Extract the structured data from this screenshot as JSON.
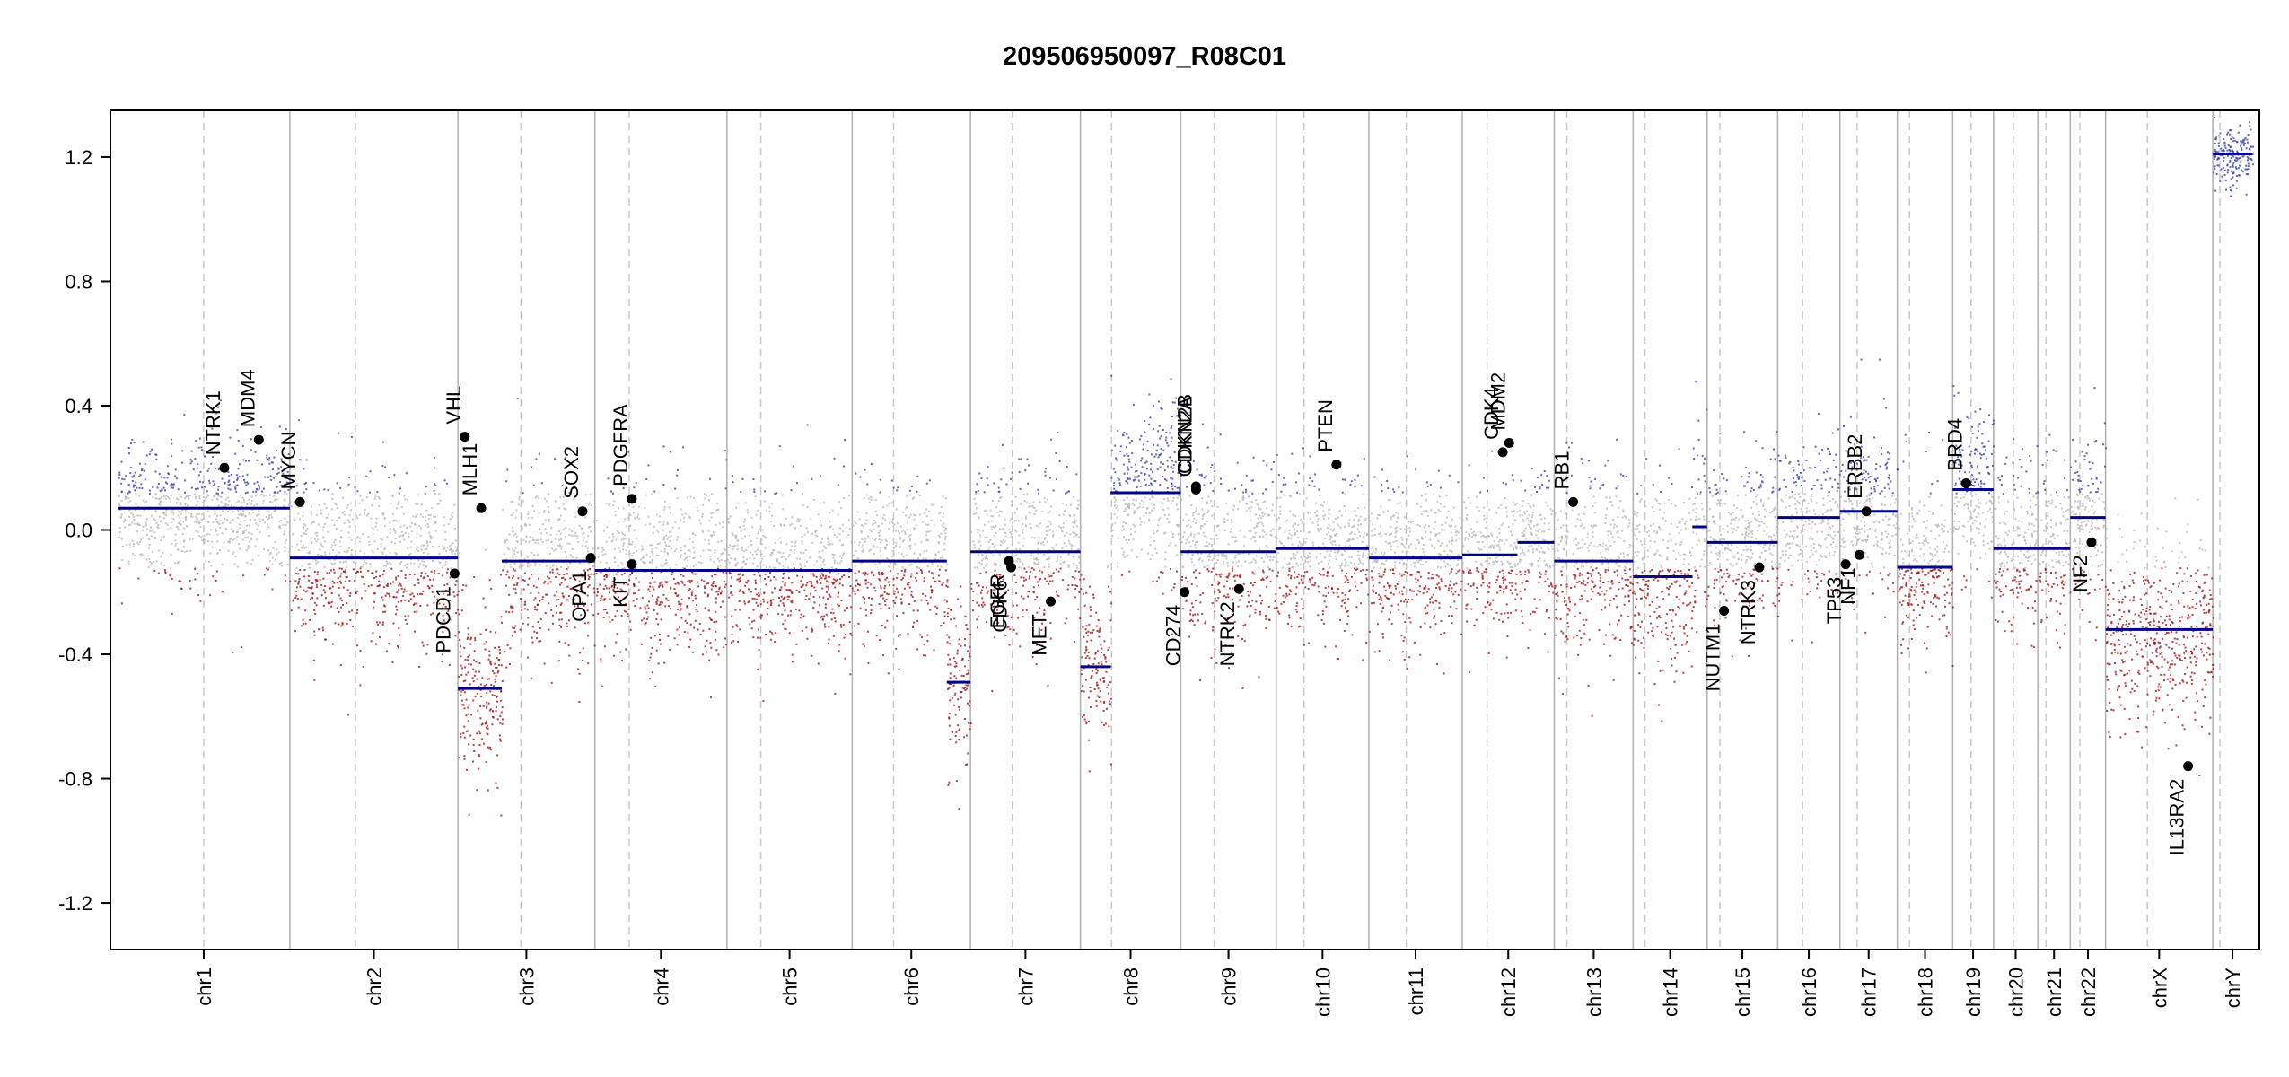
{
  "chart_data": {
    "type": "scatter",
    "title": "209506950097_R08C01",
    "xlabel": "",
    "ylabel": "",
    "ylim": [
      -1.35,
      1.35
    ],
    "y_ticks": [
      "1.2",
      "0.8",
      "0.4",
      "0.0",
      "-0.4",
      "-0.8",
      "-1.2"
    ],
    "y_tick_values": [
      1.2,
      0.8,
      0.4,
      0.0,
      -0.4,
      -0.8,
      -1.2
    ],
    "grid": false,
    "colors": {
      "gain": "#3b44a8",
      "loss": "#a11616",
      "neutral": "#b9b9b9",
      "segment": "#00008b",
      "gene_point": "#000000",
      "chrom_boundary": "#b0b0b0",
      "centromere": "#c8c8c8"
    },
    "chromosomes": [
      {
        "name": "chr1",
        "segments": [
          {
            "from": 0.0,
            "to": 1.0,
            "value": 0.07
          }
        ],
        "noise": 0.11
      },
      {
        "name": "chr2",
        "segments": [
          {
            "from": 0.0,
            "to": 1.0,
            "value": -0.09
          }
        ],
        "noise": 0.13
      },
      {
        "name": "chr3",
        "segments": [
          {
            "from": 0.0,
            "to": 0.32,
            "value": -0.51
          },
          {
            "from": 0.32,
            "to": 1.0,
            "value": -0.1
          }
        ],
        "noise": 0.14
      },
      {
        "name": "chr4",
        "segments": [
          {
            "from": 0.0,
            "to": 1.0,
            "value": -0.13
          }
        ],
        "noise": 0.14
      },
      {
        "name": "chr5",
        "segments": [
          {
            "from": 0.0,
            "to": 1.0,
            "value": -0.13
          }
        ],
        "noise": 0.13
      },
      {
        "name": "chr6",
        "segments": [
          {
            "from": 0.0,
            "to": 0.8,
            "value": -0.1
          },
          {
            "from": 0.8,
            "to": 1.0,
            "value": -0.49
          }
        ],
        "noise": 0.13
      },
      {
        "name": "chr7",
        "segments": [
          {
            "from": 0.0,
            "to": 1.0,
            "value": -0.07
          }
        ],
        "noise": 0.13
      },
      {
        "name": "chr8",
        "segments": [
          {
            "from": 0.0,
            "to": 0.3,
            "value": -0.44
          },
          {
            "from": 0.3,
            "to": 1.0,
            "value": 0.12
          }
        ],
        "noise": 0.14
      },
      {
        "name": "chr9",
        "segments": [
          {
            "from": 0.0,
            "to": 1.0,
            "value": -0.07
          }
        ],
        "noise": 0.14
      },
      {
        "name": "chr10",
        "segments": [
          {
            "from": 0.0,
            "to": 1.0,
            "value": -0.06
          }
        ],
        "noise": 0.12
      },
      {
        "name": "chr11",
        "segments": [
          {
            "from": 0.0,
            "to": 1.0,
            "value": -0.09
          }
        ],
        "noise": 0.12
      },
      {
        "name": "chr12",
        "segments": [
          {
            "from": 0.0,
            "to": 0.6,
            "value": -0.08
          },
          {
            "from": 0.6,
            "to": 1.0,
            "value": -0.04
          }
        ],
        "noise": 0.12
      },
      {
        "name": "chr13",
        "segments": [
          {
            "from": 0.0,
            "to": 1.0,
            "value": -0.1
          }
        ],
        "noise": 0.14
      },
      {
        "name": "chr14",
        "segments": [
          {
            "from": 0.0,
            "to": 0.8,
            "value": -0.15
          },
          {
            "from": 0.8,
            "to": 1.0,
            "value": 0.01
          }
        ],
        "noise": 0.16
      },
      {
        "name": "chr15",
        "segments": [
          {
            "from": 0.0,
            "to": 1.0,
            "value": -0.04
          }
        ],
        "noise": 0.13
      },
      {
        "name": "chr16",
        "segments": [
          {
            "from": 0.0,
            "to": 1.0,
            "value": 0.04
          }
        ],
        "noise": 0.12
      },
      {
        "name": "chr17",
        "segments": [
          {
            "from": 0.0,
            "to": 1.0,
            "value": 0.06
          }
        ],
        "noise": 0.13
      },
      {
        "name": "chr18",
        "segments": [
          {
            "from": 0.0,
            "to": 1.0,
            "value": -0.12
          }
        ],
        "noise": 0.13
      },
      {
        "name": "chr19",
        "segments": [
          {
            "from": 0.0,
            "to": 1.0,
            "value": 0.13
          }
        ],
        "noise": 0.12
      },
      {
        "name": "chr20",
        "segments": [
          {
            "from": 0.0,
            "to": 1.0,
            "value": -0.06
          }
        ],
        "noise": 0.12
      },
      {
        "name": "chr21",
        "segments": [
          {
            "from": 0.0,
            "to": 1.0,
            "value": -0.06
          }
        ],
        "noise": 0.13
      },
      {
        "name": "chr22",
        "segments": [
          {
            "from": 0.0,
            "to": 1.0,
            "value": 0.04
          }
        ],
        "noise": 0.13
      },
      {
        "name": "chrX",
        "segments": [
          {
            "from": 0.0,
            "to": 1.0,
            "value": -0.32
          }
        ],
        "noise": 0.15
      },
      {
        "name": "chrY",
        "segments": [
          {
            "from": 0.0,
            "to": 1.0,
            "value": 1.21
          }
        ],
        "noise": 0.05
      }
    ],
    "chromosome_lengths": [
      249,
      243,
      198,
      191,
      181,
      171,
      159,
      145,
      138,
      134,
      135,
      133,
      114,
      107,
      102,
      90,
      83,
      80,
      59,
      64,
      47,
      51,
      155,
      57
    ],
    "centromeres": [
      0.5,
      0.39,
      0.46,
      0.26,
      0.27,
      0.35,
      0.38,
      0.31,
      0.35,
      0.3,
      0.4,
      0.27,
      0.16,
      0.16,
      0.18,
      0.4,
      0.3,
      0.22,
      0.45,
      0.45,
      0.25,
      0.27,
      0.39,
      0.18
    ],
    "genes": [
      {
        "name": "NTRK1",
        "chr": "chr1",
        "pos": 0.62,
        "value": 0.2,
        "label": "above"
      },
      {
        "name": "MDM4",
        "chr": "chr1",
        "pos": 0.82,
        "value": 0.29,
        "label": "above"
      },
      {
        "name": "MYCN",
        "chr": "chr2",
        "pos": 0.06,
        "value": 0.09,
        "label": "above"
      },
      {
        "name": "VHL",
        "chr": "chr3",
        "pos": 0.05,
        "value": 0.3,
        "label": "above"
      },
      {
        "name": "PDCD1",
        "chr": "chr2",
        "pos": 0.98,
        "value": -0.14,
        "label": "below"
      },
      {
        "name": "MLH1",
        "chr": "chr3",
        "pos": 0.17,
        "value": 0.07,
        "label": "above"
      },
      {
        "name": "SOX2",
        "chr": "chr3",
        "pos": 0.91,
        "value": 0.06,
        "label": "above"
      },
      {
        "name": "OPA1",
        "chr": "chr3",
        "pos": 0.97,
        "value": -0.09,
        "label": "below"
      },
      {
        "name": "PDGFRA",
        "chr": "chr4",
        "pos": 0.28,
        "value": 0.1,
        "label": "above"
      },
      {
        "name": "KIT",
        "chr": "chr4",
        "pos": 0.28,
        "value": -0.11,
        "label": "below"
      },
      {
        "name": "EGFR",
        "chr": "chr7",
        "pos": 0.35,
        "value": -0.1,
        "label": "below"
      },
      {
        "name": "CDK6",
        "chr": "chr7",
        "pos": 0.37,
        "value": -0.12,
        "label": "below"
      },
      {
        "name": "MET",
        "chr": "chr7",
        "pos": 0.73,
        "value": -0.23,
        "label": "below"
      },
      {
        "name": "CDKN2A",
        "chr": "chr9",
        "pos": 0.16,
        "value": 0.13,
        "label": "above"
      },
      {
        "name": "CDKN2B",
        "chr": "chr9",
        "pos": 0.16,
        "value": 0.14,
        "label": "above"
      },
      {
        "name": "CD274",
        "chr": "chr9",
        "pos": 0.04,
        "value": -0.2,
        "label": "below"
      },
      {
        "name": "NTRK2",
        "chr": "chr9",
        "pos": 0.61,
        "value": -0.19,
        "label": "below"
      },
      {
        "name": "PTEN",
        "chr": "chr10",
        "pos": 0.65,
        "value": 0.21,
        "label": "above"
      },
      {
        "name": "CDK4",
        "chr": "chr12",
        "pos": 0.44,
        "value": 0.25,
        "label": "above"
      },
      {
        "name": "MDM2",
        "chr": "chr12",
        "pos": 0.51,
        "value": 0.28,
        "label": "above"
      },
      {
        "name": "RB1",
        "chr": "chr13",
        "pos": 0.24,
        "value": 0.09,
        "label": "above"
      },
      {
        "name": "NUTM1",
        "chr": "chr15",
        "pos": 0.24,
        "value": -0.26,
        "label": "below"
      },
      {
        "name": "NTRK3",
        "chr": "chr15",
        "pos": 0.74,
        "value": -0.12,
        "label": "below"
      },
      {
        "name": "TP53",
        "chr": "chr17",
        "pos": 0.1,
        "value": -0.11,
        "label": "below"
      },
      {
        "name": "NF1",
        "chr": "chr17",
        "pos": 0.34,
        "value": -0.08,
        "label": "below"
      },
      {
        "name": "ERBB2",
        "chr": "chr17",
        "pos": 0.46,
        "value": 0.06,
        "label": "above"
      },
      {
        "name": "BRD4",
        "chr": "chr19",
        "pos": 0.33,
        "value": 0.15,
        "label": "above"
      },
      {
        "name": "NF2",
        "chr": "chr22",
        "pos": 0.6,
        "value": -0.04,
        "label": "below"
      },
      {
        "name": "IL13RA2",
        "chr": "chrX",
        "pos": 0.77,
        "value": -0.76,
        "label": "below"
      }
    ]
  }
}
